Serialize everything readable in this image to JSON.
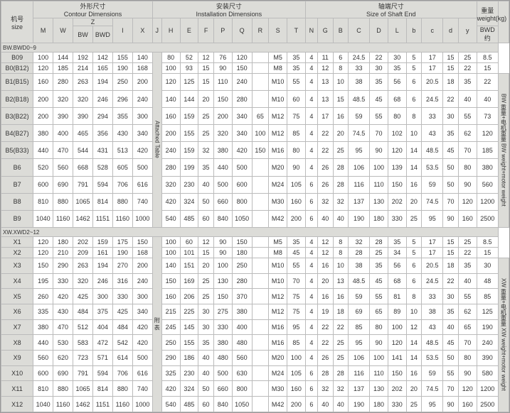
{
  "headers": {
    "size": "机号\nsize",
    "contour": "外形尺寸\nContour Dimensions",
    "install": "安装尺寸\nInstallation Dimensions",
    "shaft": "轴端尺寸\nSize of Shaft End",
    "weight": "重量\nweight(kg)",
    "z": "Z",
    "bwd_about": "BWD\n约",
    "attached": "Attached Table",
    "attached_cn": "附\n表",
    "bw_note": "BW 重量+电机重量\nBW weight+motor weight",
    "xw_note": "XW 重量+电机重量\nXW weight+motor weight"
  },
  "cols": [
    "M",
    "W",
    "BW",
    "BWD",
    "I",
    "X",
    "J",
    "H",
    "E",
    "F",
    "P",
    "Q",
    "R",
    "S",
    "T",
    "N",
    "G",
    "B",
    "C",
    "D",
    "L",
    "b",
    "c",
    "d",
    "y",
    ""
  ],
  "sections": [
    "BW.BWD0~9",
    "XW.XWD2~12"
  ],
  "rows1": [
    {
      "n": "B09",
      "d": [
        "100",
        "144",
        "192",
        "142",
        "155",
        "140",
        "",
        "80",
        "52",
        "12",
        "76",
        "120",
        "",
        "M5",
        "35",
        "4",
        "11",
        "6",
        "24.5",
        "22",
        "30",
        "5",
        "17",
        "15",
        "25",
        "8.5"
      ]
    },
    {
      "n": "B0(B12)",
      "d": [
        "120",
        "185",
        "214",
        "165",
        "190",
        "168",
        "",
        "100",
        "93",
        "15",
        "90",
        "150",
        "",
        "M8",
        "35",
        "4",
        "12",
        "8",
        "33",
        "30",
        "35",
        "5",
        "17",
        "15",
        "22",
        "15"
      ]
    },
    {
      "n": "B1(B15)",
      "d": [
        "160",
        "280",
        "263",
        "194",
        "250",
        "200",
        "",
        "120",
        "125",
        "15",
        "110",
        "240",
        "",
        "M10",
        "55",
        "4",
        "13",
        "10",
        "38",
        "35",
        "56",
        "6",
        "20.5",
        "18",
        "35",
        "22"
      ]
    },
    {
      "n": "B2(B18)",
      "d": [
        "200",
        "320",
        "320",
        "246",
        "296",
        "240",
        "",
        "140",
        "144",
        "20",
        "150",
        "280",
        "",
        "M10",
        "60",
        "4",
        "13",
        "15",
        "48.5",
        "45",
        "68",
        "6",
        "24.5",
        "22",
        "40",
        "40"
      ]
    },
    {
      "n": "B3(B22)",
      "d": [
        "200",
        "390",
        "390",
        "294",
        "355",
        "300",
        "",
        "160",
        "159",
        "25",
        "200",
        "340",
        "65",
        "M12",
        "75",
        "4",
        "17",
        "16",
        "59",
        "55",
        "80",
        "8",
        "33",
        "30",
        "55",
        "73"
      ]
    },
    {
      "n": "B4(B27)",
      "d": [
        "380",
        "400",
        "465",
        "356",
        "430",
        "340",
        "",
        "200",
        "155",
        "25",
        "320",
        "340",
        "100",
        "M12",
        "85",
        "4",
        "22",
        "20",
        "74.5",
        "70",
        "102",
        "10",
        "43",
        "35",
        "62",
        "120"
      ]
    },
    {
      "n": "B5(B33)",
      "d": [
        "440",
        "470",
        "544",
        "431",
        "513",
        "420",
        "",
        "240",
        "159",
        "32",
        "380",
        "420",
        "150",
        "M16",
        "80",
        "4",
        "22",
        "25",
        "95",
        "90",
        "120",
        "14",
        "48.5",
        "45",
        "70",
        "185"
      ]
    },
    {
      "n": "B6",
      "d": [
        "520",
        "560",
        "668",
        "528",
        "605",
        "500",
        "",
        "280",
        "199",
        "35",
        "440",
        "500",
        "",
        "M20",
        "90",
        "4",
        "26",
        "28",
        "106",
        "100",
        "139",
        "14",
        "53.5",
        "50",
        "80",
        "380"
      ]
    },
    {
      "n": "B7",
      "d": [
        "600",
        "690",
        "791",
        "594",
        "706",
        "616",
        "",
        "320",
        "230",
        "40",
        "500",
        "600",
        "",
        "M24",
        "105",
        "6",
        "26",
        "28",
        "116",
        "110",
        "150",
        "16",
        "59",
        "50",
        "90",
        "560"
      ]
    },
    {
      "n": "B8",
      "d": [
        "810",
        "880",
        "1065",
        "814",
        "880",
        "740",
        "",
        "420",
        "324",
        "50",
        "660",
        "800",
        "",
        "M30",
        "160",
        "6",
        "32",
        "32",
        "137",
        "130",
        "202",
        "20",
        "74.5",
        "70",
        "120",
        "1200"
      ]
    },
    {
      "n": "B9",
      "d": [
        "1040",
        "1160",
        "1462",
        "1151",
        "1160",
        "1000",
        "",
        "540",
        "485",
        "60",
        "840",
        "1050",
        "",
        "M42",
        "200",
        "6",
        "40",
        "40",
        "190",
        "180",
        "330",
        "25",
        "95",
        "90",
        "160",
        "2500"
      ]
    }
  ],
  "rows2": [
    {
      "n": "X1",
      "d": [
        "120",
        "180",
        "202",
        "159",
        "175",
        "150",
        "",
        "100",
        "60",
        "12",
        "90",
        "150",
        "",
        "M5",
        "35",
        "4",
        "12",
        "8",
        "32",
        "28",
        "35",
        "5",
        "17",
        "15",
        "25",
        "8.5"
      ]
    },
    {
      "n": "X2",
      "d": [
        "120",
        "210",
        "209",
        "161",
        "190",
        "168",
        "",
        "100",
        "101",
        "15",
        "90",
        "180",
        "",
        "M8",
        "45",
        "4",
        "12",
        "8",
        "28",
        "25",
        "34",
        "5",
        "17",
        "15",
        "22",
        "15"
      ]
    },
    {
      "n": "X3",
      "d": [
        "150",
        "290",
        "263",
        "194",
        "270",
        "200",
        "",
        "140",
        "151",
        "20",
        "100",
        "250",
        "",
        "M10",
        "55",
        "4",
        "16",
        "10",
        "38",
        "35",
        "56",
        "6",
        "20.5",
        "18",
        "35",
        "30"
      ]
    },
    {
      "n": "X4",
      "d": [
        "195",
        "330",
        "320",
        "246",
        "316",
        "240",
        "",
        "150",
        "169",
        "25",
        "130",
        "280",
        "",
        "M10",
        "70",
        "4",
        "20",
        "13",
        "48.5",
        "45",
        "68",
        "6",
        "24.5",
        "22",
        "40",
        "48"
      ]
    },
    {
      "n": "X5",
      "d": [
        "260",
        "420",
        "425",
        "300",
        "330",
        "300",
        "",
        "160",
        "206",
        "25",
        "150",
        "370",
        "",
        "M12",
        "75",
        "4",
        "16",
        "16",
        "59",
        "55",
        "81",
        "8",
        "33",
        "30",
        "55",
        "85"
      ]
    },
    {
      "n": "X6",
      "d": [
        "335",
        "430",
        "484",
        "375",
        "425",
        "340",
        "",
        "215",
        "225",
        "30",
        "275",
        "380",
        "",
        "M12",
        "75",
        "4",
        "19",
        "18",
        "69",
        "65",
        "89",
        "10",
        "38",
        "35",
        "62",
        "125"
      ]
    },
    {
      "n": "X7",
      "d": [
        "380",
        "470",
        "512",
        "404",
        "484",
        "420",
        "",
        "245",
        "145",
        "30",
        "330",
        "400",
        "",
        "M16",
        "95",
        "4",
        "22",
        "22",
        "85",
        "80",
        "100",
        "12",
        "43",
        "40",
        "65",
        "190"
      ]
    },
    {
      "n": "X8",
      "d": [
        "440",
        "530",
        "583",
        "472",
        "542",
        "420",
        "",
        "250",
        "155",
        "35",
        "380",
        "480",
        "",
        "M16",
        "85",
        "4",
        "22",
        "25",
        "95",
        "90",
        "120",
        "14",
        "48.5",
        "45",
        "70",
        "240"
      ]
    },
    {
      "n": "X9",
      "d": [
        "560",
        "620",
        "723",
        "571",
        "614",
        "500",
        "",
        "290",
        "186",
        "40",
        "480",
        "560",
        "",
        "M20",
        "100",
        "4",
        "26",
        "25",
        "106",
        "100",
        "141",
        "14",
        "53.5",
        "50",
        "80",
        "390"
      ]
    },
    {
      "n": "X10",
      "d": [
        "600",
        "690",
        "791",
        "594",
        "706",
        "616",
        "",
        "325",
        "230",
        "40",
        "500",
        "630",
        "",
        "M24",
        "105",
        "6",
        "28",
        "28",
        "116",
        "110",
        "150",
        "16",
        "59",
        "55",
        "90",
        "580"
      ]
    },
    {
      "n": "X11",
      "d": [
        "810",
        "880",
        "1065",
        "814",
        "880",
        "740",
        "",
        "420",
        "324",
        "50",
        "660",
        "800",
        "",
        "M30",
        "160",
        "6",
        "32",
        "32",
        "137",
        "130",
        "202",
        "20",
        "74.5",
        "70",
        "120",
        "1200"
      ]
    },
    {
      "n": "X12",
      "d": [
        "1040",
        "1160",
        "1462",
        "1151",
        "1160",
        "1000",
        "",
        "540",
        "485",
        "60",
        "840",
        "1050",
        "",
        "M42",
        "200",
        "6",
        "40",
        "40",
        "190",
        "180",
        "330",
        "25",
        "95",
        "90",
        "160",
        "2500"
      ]
    }
  ],
  "style": {
    "headerBg": "#dcdcd8",
    "borderColor": "#bbbbbb",
    "textColor": "#333333"
  }
}
